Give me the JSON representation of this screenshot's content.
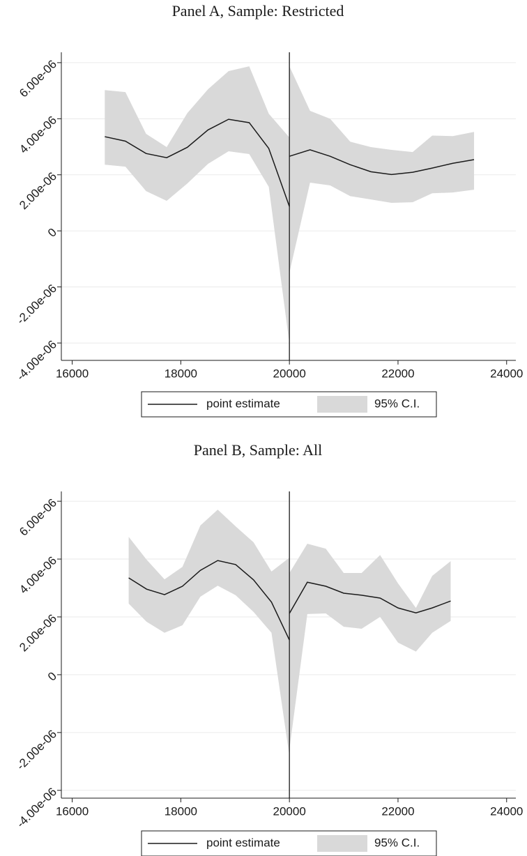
{
  "chart_data": [
    {
      "type": "line",
      "title": "Panel A, Sample: Restricted",
      "x": [
        16600,
        16980,
        17360,
        17740,
        18120,
        18500,
        18880,
        19260,
        19620,
        20000,
        null,
        20000,
        20380,
        20750,
        21120,
        21500,
        21880,
        22270,
        22630,
        23010,
        23400
      ],
      "series": [
        {
          "name": "point estimate",
          "color": "#1a1a1a",
          "values": [
            3.36e-06,
            3.2e-06,
            2.76e-06,
            2.61e-06,
            2.98e-06,
            3.6e-06,
            3.98e-06,
            3.86e-06,
            2.94e-06,
            8.7e-07,
            null,
            2.66e-06,
            2.89e-06,
            2.66e-06,
            2.36e-06,
            2.11e-06,
            2.01e-06,
            2.09e-06,
            2.24e-06,
            2.41e-06,
            2.54e-06
          ]
        },
        {
          "name": "95% C.I.",
          "color": "#d9d9d9",
          "upper": [
            5.02e-06,
            4.95e-06,
            3.46e-06,
            2.99e-06,
            4.2e-06,
            5.05e-06,
            5.7e-06,
            5.87e-06,
            4.18e-06,
            3.33e-06,
            null,
            5.87e-06,
            4.28e-06,
            4e-06,
            3.18e-06,
            2.99e-06,
            2.89e-06,
            2.81e-06,
            3.4e-06,
            3.38e-06,
            3.53e-06
          ],
          "lower": [
            2.36e-06,
            2.29e-06,
            1.42e-06,
            1.07e-06,
            1.69e-06,
            2.39e-06,
            2.84e-06,
            2.74e-06,
            1.57e-06,
            -4.03e-06,
            null,
            -1.49e-06,
            1.72e-06,
            1.62e-06,
            1.24e-06,
            1.12e-06,
            1e-06,
            1.02e-06,
            1.34e-06,
            1.37e-06,
            1.47e-06
          ]
        }
      ],
      "xlim": [
        15800,
        24170
      ],
      "xticks": [
        16000,
        18000,
        20000,
        22000,
        24000
      ],
      "ylim": [
        -4.62e-06,
        6.37e-06
      ],
      "yticks": [
        {
          "value": -4e-06,
          "label": "-4.00e-06"
        },
        {
          "value": -2e-06,
          "label": "-2.00e-06"
        },
        0,
        {
          "value": 2e-06,
          "label": "2.00e-06"
        },
        {
          "value": 4e-06,
          "label": "4.00e-06"
        },
        {
          "value": 6e-06,
          "label": "6.00e-06"
        }
      ],
      "grid": true,
      "vline": 20000
    },
    {
      "type": "line",
      "title": "Panel B, Sample: All",
      "x": [
        17040,
        17370,
        17700,
        18030,
        18360,
        18680,
        19010,
        19340,
        19670,
        20000,
        null,
        20000,
        20330,
        20670,
        21000,
        21330,
        21670,
        22000,
        22330,
        22630,
        22970
      ],
      "series": [
        {
          "name": "point estimate",
          "color": "#1a1a1a",
          "values": [
            3.35e-06,
            2.96e-06,
            2.77e-06,
            3.06e-06,
            3.61e-06,
            3.95e-06,
            3.81e-06,
            3.28e-06,
            2.51e-06,
            1.2e-06,
            null,
            2.12e-06,
            3.2e-06,
            3.06e-06,
            2.82e-06,
            2.75e-06,
            2.65e-06,
            2.31e-06,
            2.14e-06,
            2.31e-06,
            2.55e-06
          ]
        },
        {
          "name": "95% C.I.",
          "color": "#d9d9d9",
          "upper": [
            4.77e-06,
            3.98e-06,
            3.3e-06,
            3.73e-06,
            5.16e-06,
            5.71e-06,
            5.13e-06,
            4.58e-06,
            3.57e-06,
            4.05e-06,
            null,
            3.52e-06,
            4.53e-06,
            4.36e-06,
            3.52e-06,
            3.52e-06,
            4.14e-06,
            3.16e-06,
            2.31e-06,
            3.42e-06,
            3.93e-06
          ],
          "lower": [
            2.46e-06,
            1.83e-06,
            1.45e-06,
            1.71e-06,
            2.7e-06,
            3.08e-06,
            2.75e-06,
            2.17e-06,
            1.45e-06,
            -2.82e-06,
            null,
            -2.58e-06,
            2.1e-06,
            2.12e-06,
            1.66e-06,
            1.59e-06,
            2e-06,
            1.11e-06,
            8e-07,
            1.45e-06,
            1.86e-06
          ]
        }
      ],
      "xlim": [
        15800,
        24170
      ],
      "xticks": [
        16000,
        18000,
        20000,
        22000,
        24000
      ],
      "ylim": [
        -4.27e-06,
        6.34e-06
      ],
      "yticks": [
        {
          "value": -4e-06,
          "label": "-4.00e-06"
        },
        {
          "value": -2e-06,
          "label": "-2.00e-06"
        },
        0,
        {
          "value": 2e-06,
          "label": "2.00e-06"
        },
        {
          "value": 4e-06,
          "label": "4.00e-06"
        },
        {
          "value": 6e-06,
          "label": "6.00e-06"
        }
      ],
      "grid": true,
      "vline": 20000
    }
  ]
}
